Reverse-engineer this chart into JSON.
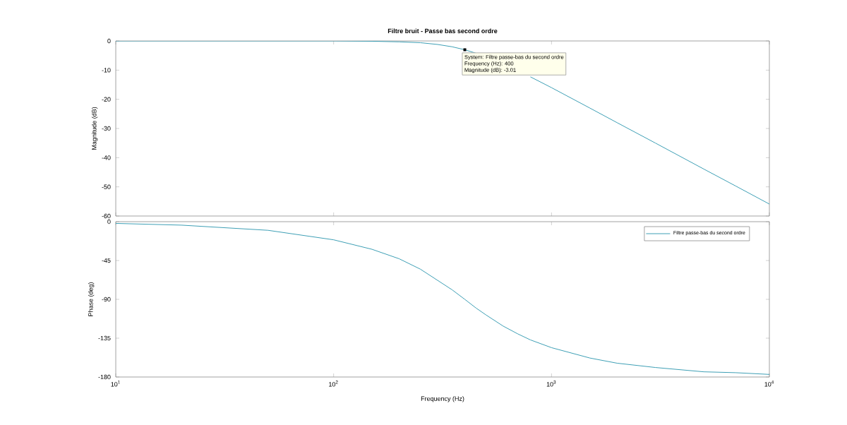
{
  "chart_data": [
    {
      "type": "line",
      "title": "Filtre bruit - Passe bas second ordre",
      "ylabel": "Magnitude (dB)",
      "log": "x",
      "grid": false,
      "tick_labels": "y",
      "xlim": [
        10,
        10000
      ],
      "xticks": [
        {
          "value": 10,
          "label": null
        },
        {
          "value": 100,
          "label": null
        },
        {
          "value": 1000,
          "label": null
        },
        {
          "value": 10000,
          "label": null
        }
      ],
      "ylim": [
        -60,
        0
      ],
      "yticks": [
        0,
        -10,
        -20,
        -30,
        -40,
        -50,
        -60
      ],
      "series": [
        {
          "color": "#3d9fb5",
          "x": [
            10,
            20,
            50,
            100,
            150,
            200,
            250,
            300,
            350,
            400,
            450,
            500,
            600,
            700,
            800,
            1000,
            1500,
            2000,
            3000,
            5000,
            7000,
            10000
          ],
          "values": [
            0,
            0,
            0,
            0,
            -0.1,
            -0.3,
            -0.6,
            -1.2,
            -2.0,
            -3.01,
            -4.2,
            null,
            null,
            null,
            -12.3,
            -16.0,
            -23.0,
            -28.0,
            -35.0,
            -43.9,
            -49.7,
            -55.9
          ]
        }
      ],
      "annotations": [
        {
          "text": "System: Filtre passe-bas du second ordre",
          "x": 400,
          "y": -3.01
        },
        "Frequency (Hz): 400",
        "Magnitude (dB): -3.01"
      ]
    },
    {
      "type": "line",
      "xlabel": "Frequency  (Hz)",
      "ylabel": "Phase (deg)",
      "log": "x",
      "grid": false,
      "legend": "top right",
      "xlim": [
        10,
        10000
      ],
      "xticks": [
        {
          "value": 10,
          "label": "10$^{1}$"
        },
        {
          "value": 100,
          "label": "10$^{2}$"
        },
        {
          "value": 1000,
          "label": "10$^{3}$"
        },
        {
          "value": 10000,
          "label": "10$^{4}$"
        }
      ],
      "ylim": [
        -180,
        0
      ],
      "yticks": [
        0,
        -45,
        -90,
        -135,
        -180
      ],
      "series": [
        {
          "name": "Filtre passe-bas du second ordre",
          "color": "#3d9fb5",
          "x": [
            10,
            20,
            50,
            100,
            150,
            200,
            250,
            300,
            350,
            400,
            450,
            500,
            600,
            700,
            800,
            1000,
            1500,
            2000,
            3000,
            5000,
            7000,
            10000
          ],
          "values": [
            -2,
            -4,
            -10,
            -21,
            -32,
            -43,
            -55,
            -68,
            -79,
            -90,
            -100,
            -108,
            -121,
            -130,
            -137,
            -146,
            -158,
            -164,
            -169,
            -174,
            -175,
            -177
          ]
        }
      ]
    }
  ]
}
